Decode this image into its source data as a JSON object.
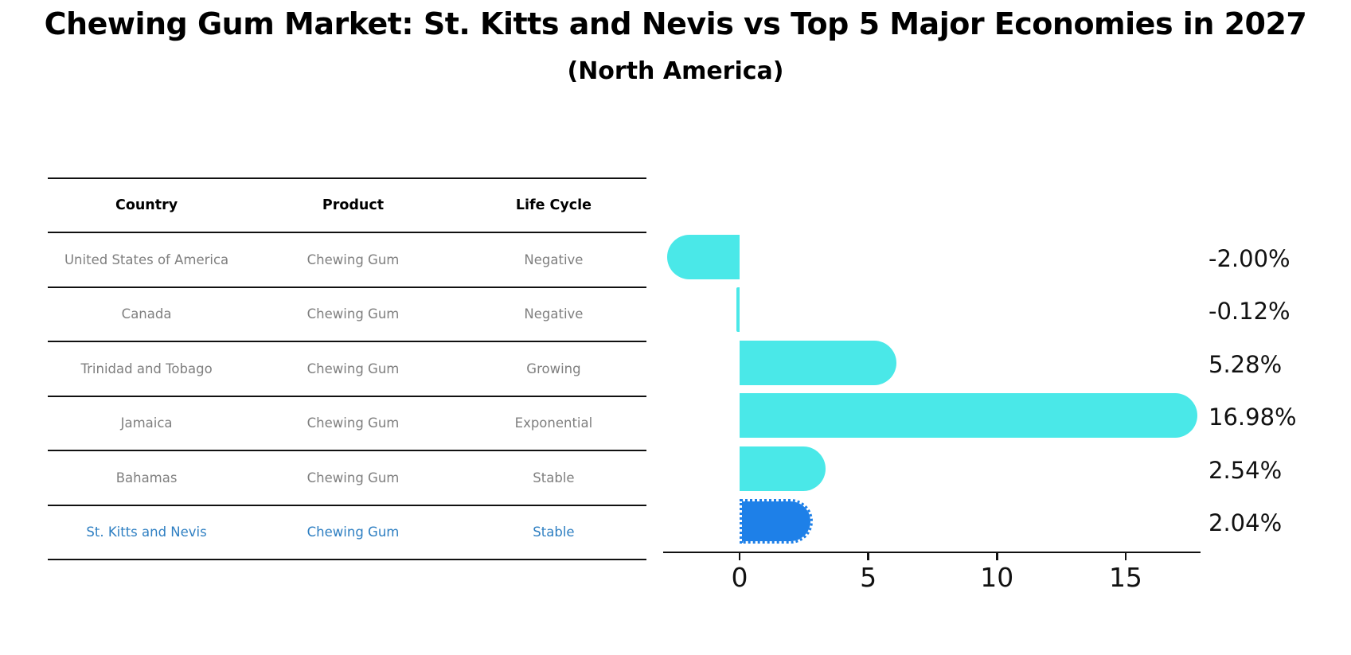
{
  "header": {
    "title": "Chewing Gum Market: St. Kitts and Nevis vs Top 5 Major Economies in 2027",
    "subtitle": "(North America)"
  },
  "table": {
    "headers": [
      "Country",
      "Product",
      "Life Cycle"
    ],
    "rows": [
      {
        "country": "United States of America",
        "product": "Chewing Gum",
        "life_cycle": "Negative",
        "highlighted": false
      },
      {
        "country": "Canada",
        "product": "Chewing Gum",
        "life_cycle": "Negative",
        "highlighted": false
      },
      {
        "country": "Trinidad and Tobago",
        "product": "Chewing Gum",
        "life_cycle": "Growing",
        "highlighted": false
      },
      {
        "country": "Jamaica",
        "product": "Chewing Gum",
        "life_cycle": "Exponential",
        "highlighted": false
      },
      {
        "country": "Bahamas",
        "product": "Chewing Gum",
        "life_cycle": "Stable",
        "highlighted": false
      },
      {
        "country": "St. Kitts and Nevis",
        "product": "Chewing Gum",
        "life_cycle": "Stable",
        "highlighted": true
      }
    ]
  },
  "chart_data": {
    "type": "bar",
    "orientation": "horizontal",
    "categories": [
      "United States of America",
      "Canada",
      "Trinidad and Tobago",
      "Jamaica",
      "Bahamas",
      "St. Kitts and Nevis"
    ],
    "values": [
      -2.0,
      -0.12,
      5.28,
      16.98,
      2.54,
      2.04
    ],
    "value_labels": [
      "-2.00%",
      "-0.12%",
      "5.28%",
      "16.98%",
      "2.54%",
      "2.04%"
    ],
    "x_ticks": [
      "0",
      "5",
      "10",
      "15"
    ],
    "x_tick_values": [
      0,
      5,
      10,
      15
    ],
    "xlim": [
      -3,
      18
    ],
    "unit": "percent",
    "grid": false,
    "legend": false,
    "bar_color": "#4ae8e8",
    "highlight_color": "#1e80e8",
    "highlight_index": 5
  },
  "colors": {
    "accent_text": "#2e7fc2",
    "table_text": "#7f7f7f",
    "axis": "#111111",
    "background": "#ffffff"
  }
}
